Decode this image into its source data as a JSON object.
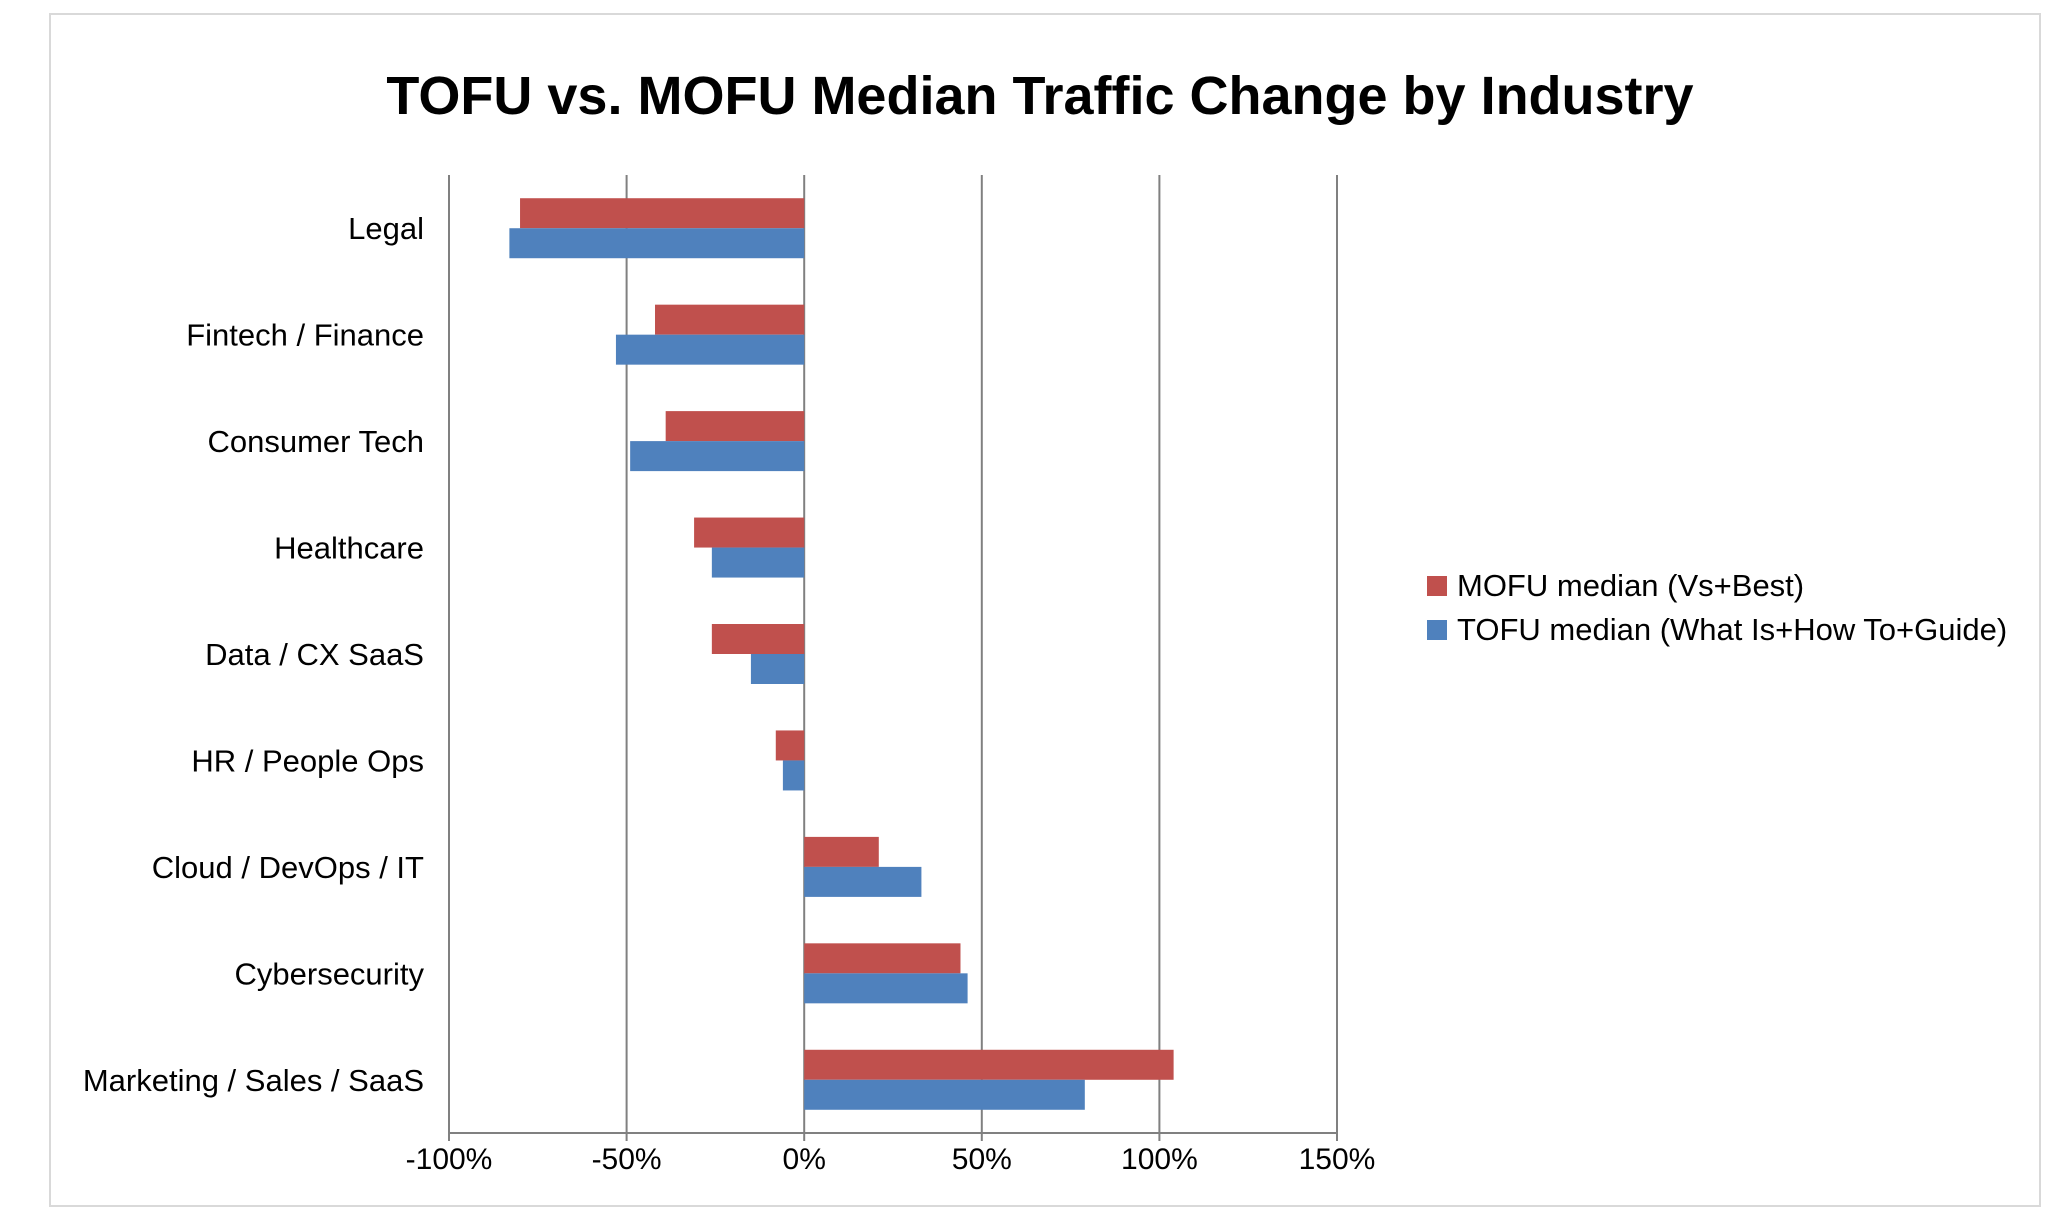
{
  "colors": {
    "mofu": "#c0504d",
    "tofu": "#4f81bd",
    "gridline": "#808080",
    "frame": "#d9d9d9"
  },
  "chart_data": {
    "type": "bar",
    "orientation": "horizontal",
    "title": "TOFU vs. MOFU Median Traffic Change by Industry",
    "xlabel": "",
    "ylabel": "",
    "categories": [
      "Legal",
      "Fintech / Finance",
      "Consumer Tech",
      "Healthcare",
      "Data / CX SaaS",
      "HR / People Ops",
      "Cloud / DevOps / IT",
      "Cybersecurity",
      "Marketing / Sales / SaaS"
    ],
    "series": [
      {
        "name": "MOFU median (Vs+Best)",
        "values": [
          -80,
          -42,
          -39,
          -31,
          -26,
          -8,
          21,
          44,
          104
        ]
      },
      {
        "name": "TOFU median (What Is+How To+Guide)",
        "values": [
          -83,
          -53,
          -49,
          -26,
          -15,
          -6,
          33,
          46,
          79
        ]
      }
    ],
    "xlim": [
      -100,
      150
    ],
    "xticks": [
      -100,
      -50,
      0,
      50,
      100,
      150
    ],
    "xtick_labels": [
      "-100%",
      "-50%",
      "0%",
      "50%",
      "100%",
      "150%"
    ],
    "grid": "vertical",
    "legend_position": "right"
  }
}
